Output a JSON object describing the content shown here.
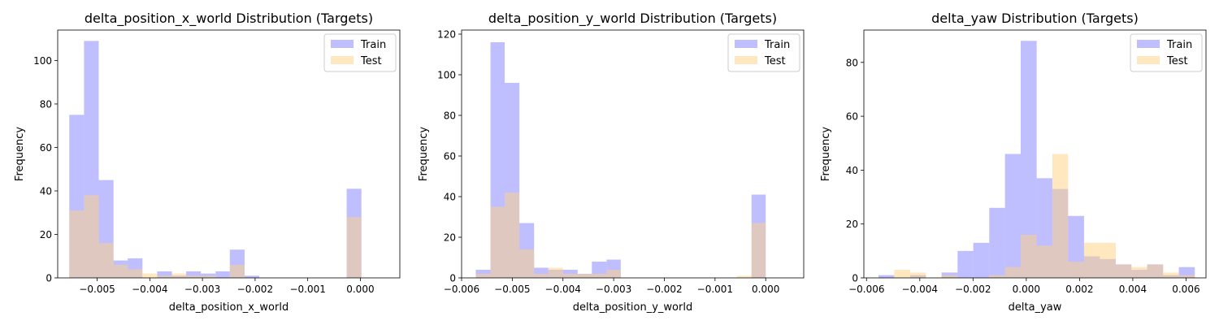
{
  "chart_data": [
    {
      "type": "histogram",
      "title": "delta_position_x_world Distribution (Targets)",
      "xlabel": "delta_position_x_world",
      "ylabel": "Frequency",
      "xlim": [
        -0.00575,
        0.00075
      ],
      "ylim": [
        0,
        114
      ],
      "xticks": [
        -0.005,
        -0.004,
        -0.003,
        -0.002,
        -0.001,
        0.0
      ],
      "xtick_labels": [
        "−0.005",
        "−0.004",
        "−0.003",
        "−0.002",
        "−0.001",
        "0.000"
      ],
      "yticks": [
        0,
        20,
        40,
        60,
        80,
        100
      ],
      "ytick_labels": [
        "0",
        "20",
        "40",
        "60",
        "80",
        "100"
      ],
      "legend": "top-right",
      "series": [
        {
          "name": "Train",
          "color": "#8080ff",
          "bin_edges": [
            -0.00553,
            -0.00525,
            -0.00497,
            -0.00469,
            -0.00442,
            -0.00414,
            -0.00386,
            -0.00358,
            -0.00331,
            -0.00303,
            -0.00275,
            -0.00248,
            -0.0022,
            -0.00192,
            -0.00164,
            -0.00137,
            -0.00109,
            -0.00081,
            -0.00054,
            -0.00026,
            2e-05
          ],
          "counts": [
            75,
            109,
            45,
            8,
            9,
            0,
            3,
            1,
            3,
            2,
            3,
            13,
            1,
            0,
            0,
            0,
            0,
            0,
            0,
            41
          ]
        },
        {
          "name": "Test",
          "color": "#ffd280",
          "bin_edges": [
            -0.00553,
            -0.00525,
            -0.00497,
            -0.00469,
            -0.00442,
            -0.00414,
            -0.00386,
            -0.00358,
            -0.00331,
            -0.00303,
            -0.00275,
            -0.00248,
            -0.0022,
            -0.00192,
            -0.00164,
            -0.00137,
            -0.00109,
            -0.00081,
            -0.00054,
            -0.00026,
            2e-05
          ],
          "counts": [
            31,
            38,
            16,
            6,
            4,
            2,
            1,
            2,
            1,
            1,
            0,
            6,
            0,
            0,
            0,
            0,
            0,
            0,
            0,
            28
          ]
        }
      ]
    },
    {
      "type": "histogram",
      "title": "delta_position_y_world Distribution (Targets)",
      "xlabel": "delta_position_y_world",
      "ylabel": "Frequency",
      "xlim": [
        -0.006,
        0.00075
      ],
      "ylim": [
        0,
        122
      ],
      "xticks": [
        -0.006,
        -0.005,
        -0.004,
        -0.003,
        -0.002,
        -0.001,
        0.0
      ],
      "xtick_labels": [
        "−0.006",
        "−0.005",
        "−0.004",
        "−0.003",
        "−0.002",
        "−0.001",
        "0.000"
      ],
      "yticks": [
        0,
        20,
        40,
        60,
        80,
        100,
        120
      ],
      "ytick_labels": [
        "0",
        "20",
        "40",
        "60",
        "80",
        "100",
        "120"
      ],
      "legend": "top-right",
      "series": [
        {
          "name": "Train",
          "color": "#8080ff",
          "bin_edges": [
            -0.00572,
            -0.00543,
            -0.00515,
            -0.00486,
            -0.00457,
            -0.00429,
            -0.004,
            -0.00371,
            -0.00343,
            -0.00314,
            -0.00286,
            -0.00257,
            -0.00228,
            -0.002,
            -0.00171,
            -0.00143,
            -0.00114,
            -0.00085,
            -0.00057,
            -0.00028,
            0.0
          ],
          "counts": [
            4,
            116,
            96,
            27,
            5,
            4,
            4,
            2,
            8,
            9,
            0,
            0,
            0,
            0,
            0,
            0,
            0,
            0,
            0,
            41
          ]
        },
        {
          "name": "Test",
          "color": "#ffd280",
          "bin_edges": [
            -0.00572,
            -0.00543,
            -0.00515,
            -0.00486,
            -0.00457,
            -0.00429,
            -0.004,
            -0.00371,
            -0.00343,
            -0.00314,
            -0.00286,
            -0.00257,
            -0.00228,
            -0.002,
            -0.00171,
            -0.00143,
            -0.00114,
            -0.00085,
            -0.00057,
            -0.00028,
            0.0
          ],
          "counts": [
            2,
            35,
            42,
            14,
            2,
            5,
            2,
            2,
            2,
            4,
            0,
            0,
            0,
            0,
            0,
            0,
            0,
            0,
            1,
            27
          ]
        }
      ]
    },
    {
      "type": "histogram",
      "title": "delta_yaw Distribution (Targets)",
      "xlabel": "delta_yaw",
      "ylabel": "Frequency",
      "xlim": [
        -0.0061,
        0.00675
      ],
      "ylim": [
        0,
        92
      ],
      "xticks": [
        -0.006,
        -0.004,
        -0.002,
        0.0,
        0.002,
        0.004,
        0.006
      ],
      "xtick_labels": [
        "−0.006",
        "−0.004",
        "−0.002",
        "0.000",
        "0.002",
        "0.004",
        "0.006"
      ],
      "yticks": [
        0,
        20,
        40,
        60,
        80
      ],
      "ytick_labels": [
        "0",
        "20",
        "40",
        "60",
        "80"
      ],
      "legend": "top-right",
      "series": [
        {
          "name": "Train",
          "color": "#8080ff",
          "bin_edges": [
            -0.00555,
            -0.00496,
            -0.00436,
            -0.00377,
            -0.00318,
            -0.00258,
            -0.00199,
            -0.00139,
            -0.0008,
            -0.00021,
            0.00039,
            0.00098,
            0.00157,
            0.00217,
            0.00276,
            0.00336,
            0.00395,
            0.00454,
            0.00514,
            0.00573,
            0.00633
          ],
          "counts": [
            1,
            0,
            1,
            0,
            2,
            10,
            13,
            26,
            46,
            88,
            37,
            33,
            23,
            8,
            7,
            5,
            3,
            5,
            1,
            4
          ]
        },
        {
          "name": "Test",
          "color": "#ffd280",
          "bin_edges": [
            -0.00555,
            -0.00496,
            -0.00436,
            -0.00377,
            -0.00318,
            -0.00258,
            -0.00199,
            -0.00139,
            -0.0008,
            -0.00021,
            0.00039,
            0.00098,
            0.00157,
            0.00217,
            0.00276,
            0.00336,
            0.00395,
            0.00454,
            0.00514,
            0.00573,
            0.00633
          ],
          "counts": [
            0,
            3,
            2,
            0,
            1,
            0,
            0,
            1,
            4,
            16,
            12,
            46,
            6,
            13,
            13,
            5,
            4,
            5,
            2,
            1
          ]
        }
      ]
    }
  ]
}
